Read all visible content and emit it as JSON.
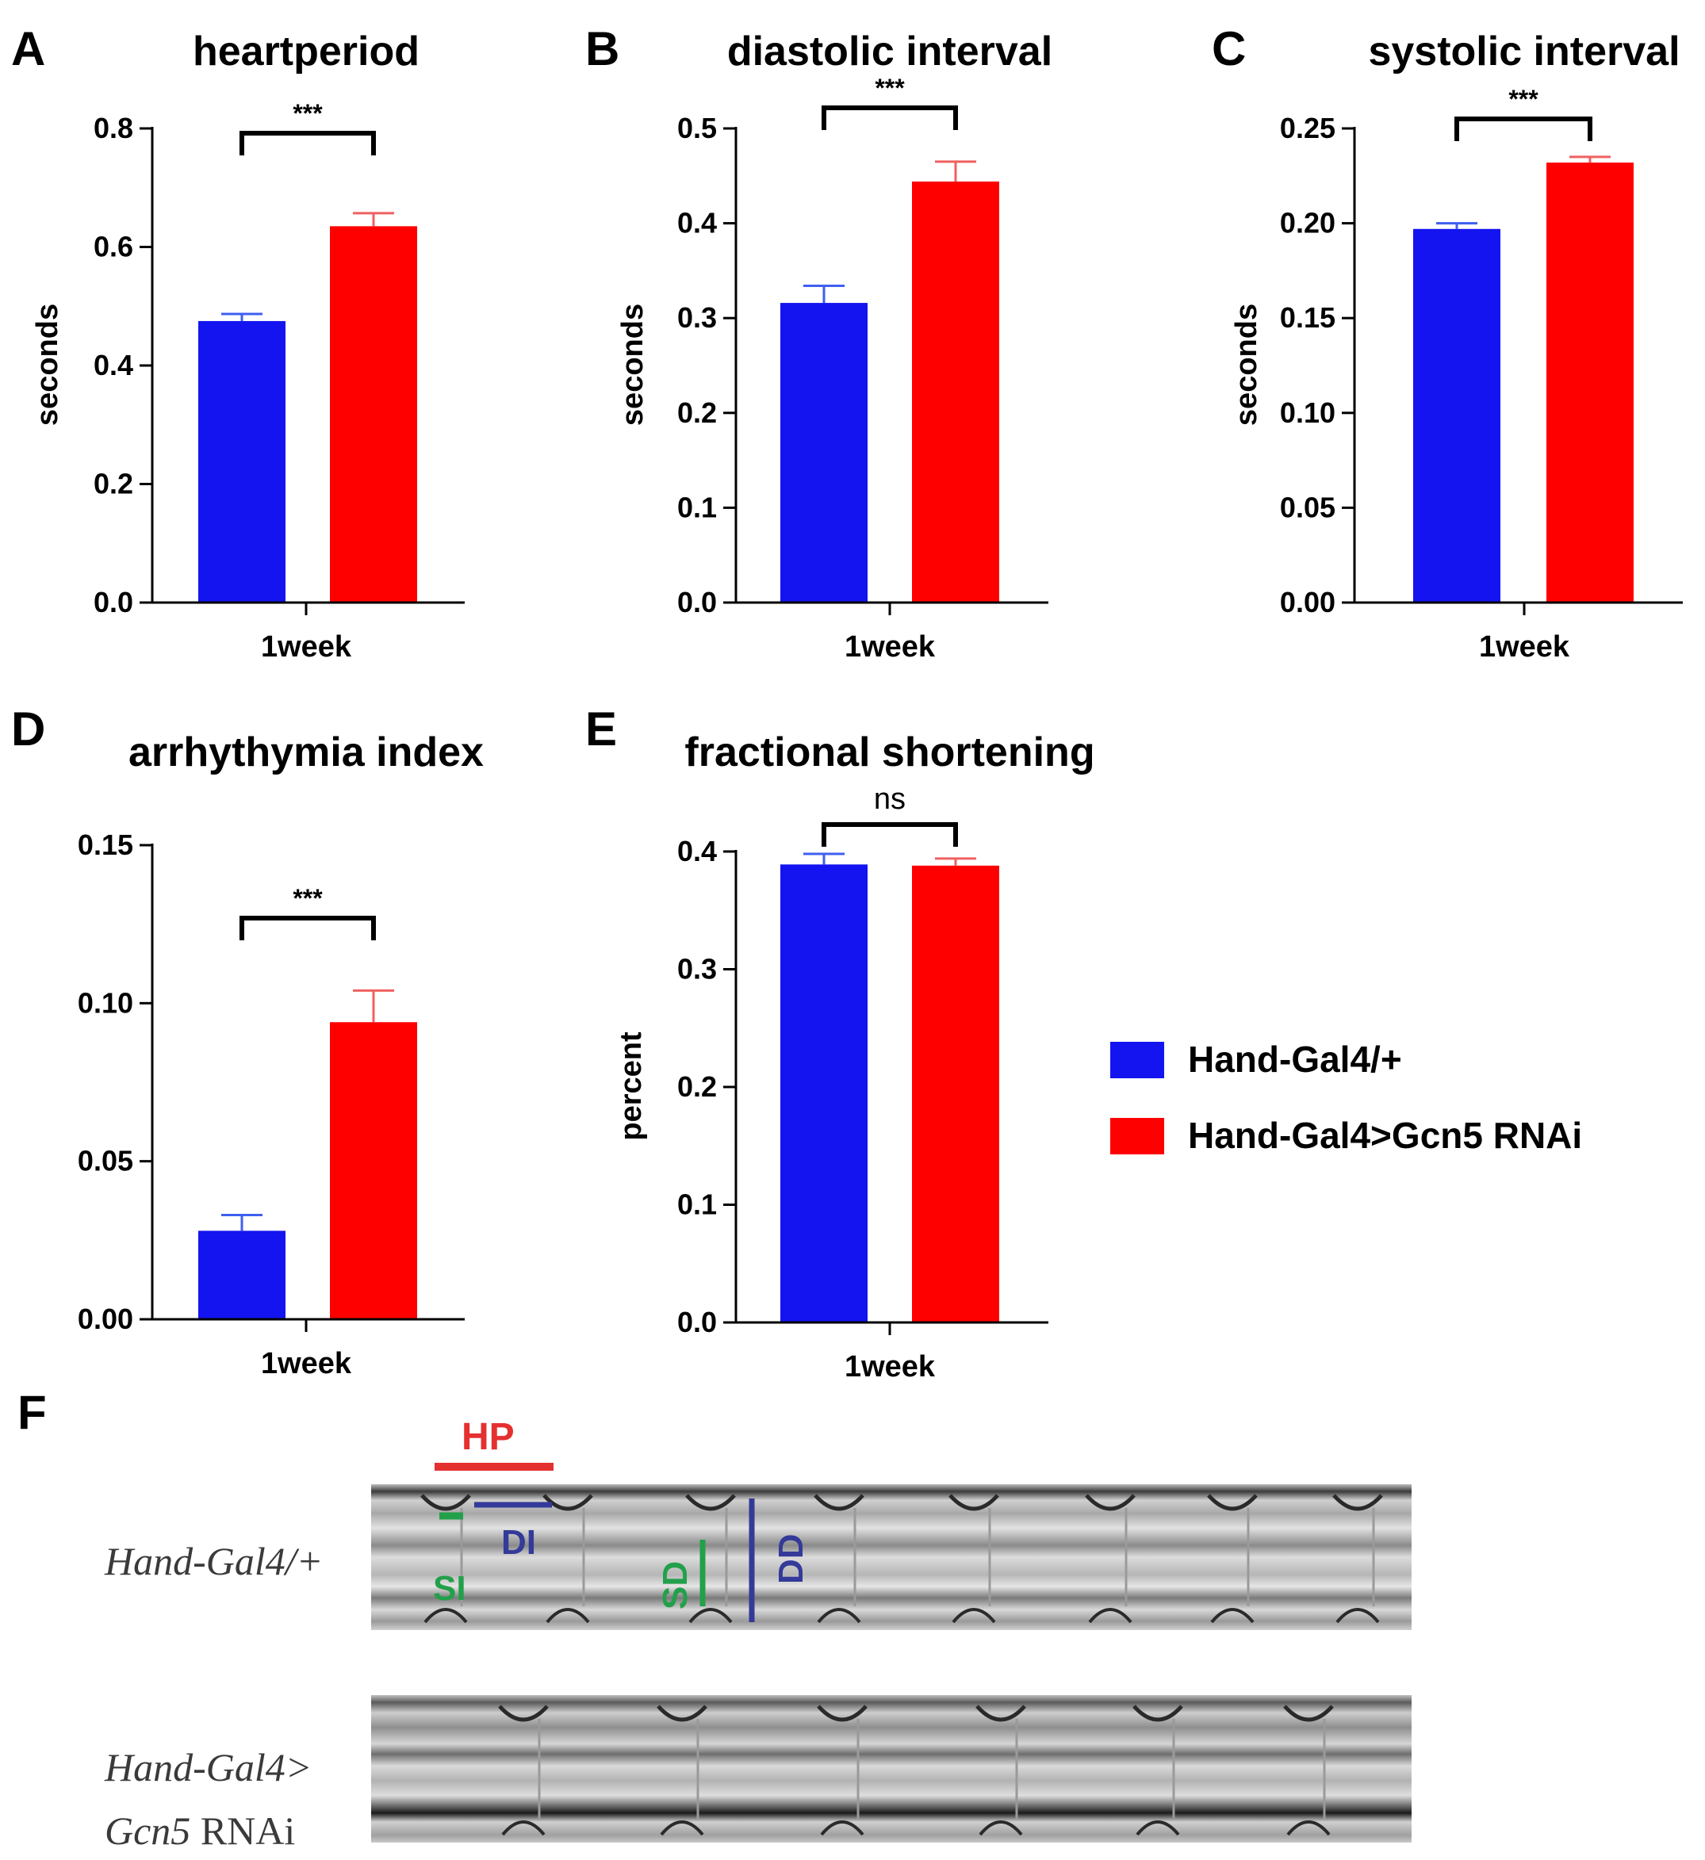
{
  "panel_letters": [
    "A",
    "B",
    "C",
    "D",
    "E",
    "F"
  ],
  "colors": {
    "control": "#1414f0",
    "control_err": "#3f5ff0",
    "rnai": "#ff0000",
    "rnai_err": "#f06060",
    "axis": "#000000",
    "annot_green": "#22a04a",
    "annot_blue": "#333a99",
    "annot_red": "#e53030"
  },
  "legend": {
    "items": [
      {
        "label": "Hand-Gal4/+",
        "color": "#1414f0"
      },
      {
        "label": "Hand-Gal4>Gcn5 RNAi",
        "color": "#ff0000"
      }
    ]
  },
  "chart_data": [
    {
      "panel": "A",
      "type": "bar",
      "title": "heartperiod",
      "ylabel": "seconds",
      "categories": [
        "1week"
      ],
      "ylim": [
        0,
        0.8
      ],
      "yticks": [
        "0.0",
        "0.2",
        "0.4",
        "0.6",
        "0.8"
      ],
      "series": [
        {
          "name": "Hand-Gal4/+",
          "values": [
            0.475
          ],
          "errors": [
            0.012
          ]
        },
        {
          "name": "Hand-Gal4>Gcn5 RNAi",
          "values": [
            0.635
          ],
          "errors": [
            0.022
          ]
        }
      ],
      "significance": "***"
    },
    {
      "panel": "B",
      "type": "bar",
      "title": "diastolic interval",
      "ylabel": "seconds",
      "categories": [
        "1week"
      ],
      "ylim": [
        0,
        0.5
      ],
      "yticks": [
        "0.0",
        "0.1",
        "0.2",
        "0.3",
        "0.4",
        "0.5"
      ],
      "series": [
        {
          "name": "Hand-Gal4/+",
          "values": [
            0.316
          ],
          "errors": [
            0.018
          ]
        },
        {
          "name": "Hand-Gal4>Gcn5 RNAi",
          "values": [
            0.444
          ],
          "errors": [
            0.021
          ]
        }
      ],
      "significance": "***"
    },
    {
      "panel": "C",
      "type": "bar",
      "title": "systolic interval",
      "ylabel": "seconds",
      "categories": [
        "1week"
      ],
      "ylim": [
        0,
        0.25
      ],
      "yticks": [
        "0.00",
        "0.05",
        "0.10",
        "0.15",
        "0.20",
        "0.25"
      ],
      "series": [
        {
          "name": "Hand-Gal4/+",
          "values": [
            0.197
          ],
          "errors": [
            0.003
          ]
        },
        {
          "name": "Hand-Gal4>Gcn5 RNAi",
          "values": [
            0.232
          ],
          "errors": [
            0.003
          ]
        }
      ],
      "significance": "***"
    },
    {
      "panel": "D",
      "type": "bar",
      "title": "arrhythymia index",
      "ylabel": "",
      "categories": [
        "1week"
      ],
      "ylim": [
        0,
        0.15
      ],
      "yticks": [
        "0.00",
        "0.05",
        "0.10",
        "0.15"
      ],
      "series": [
        {
          "name": "Hand-Gal4/+",
          "values": [
            0.028
          ],
          "errors": [
            0.005
          ]
        },
        {
          "name": "Hand-Gal4>Gcn5 RNAi",
          "values": [
            0.094
          ],
          "errors": [
            0.01
          ]
        }
      ],
      "significance": "***"
    },
    {
      "panel": "E",
      "type": "bar",
      "title": "fractional shortening",
      "ylabel": "percent",
      "categories": [
        "1week"
      ],
      "ylim": [
        0,
        0.4
      ],
      "yticks": [
        "0.0",
        "0.1",
        "0.2",
        "0.3",
        "0.4"
      ],
      "series": [
        {
          "name": "Hand-Gal4/+",
          "values": [
            0.389
          ],
          "errors": [
            0.009
          ]
        },
        {
          "name": "Hand-Gal4>Gcn5 RNAi",
          "values": [
            0.388
          ],
          "errors": [
            0.006
          ]
        }
      ],
      "significance": "ns"
    }
  ],
  "kymograph": {
    "top_label": "Hand-Gal4/+",
    "bottom_label_line1": "Hand-Gal4>",
    "bottom_label_line2_italic": "Gcn5",
    "bottom_label_line2_plain": " RNAi",
    "annotations": {
      "hp": "HP",
      "di": "DI",
      "si": "SI",
      "sd": "SD",
      "dd": "DD"
    }
  }
}
